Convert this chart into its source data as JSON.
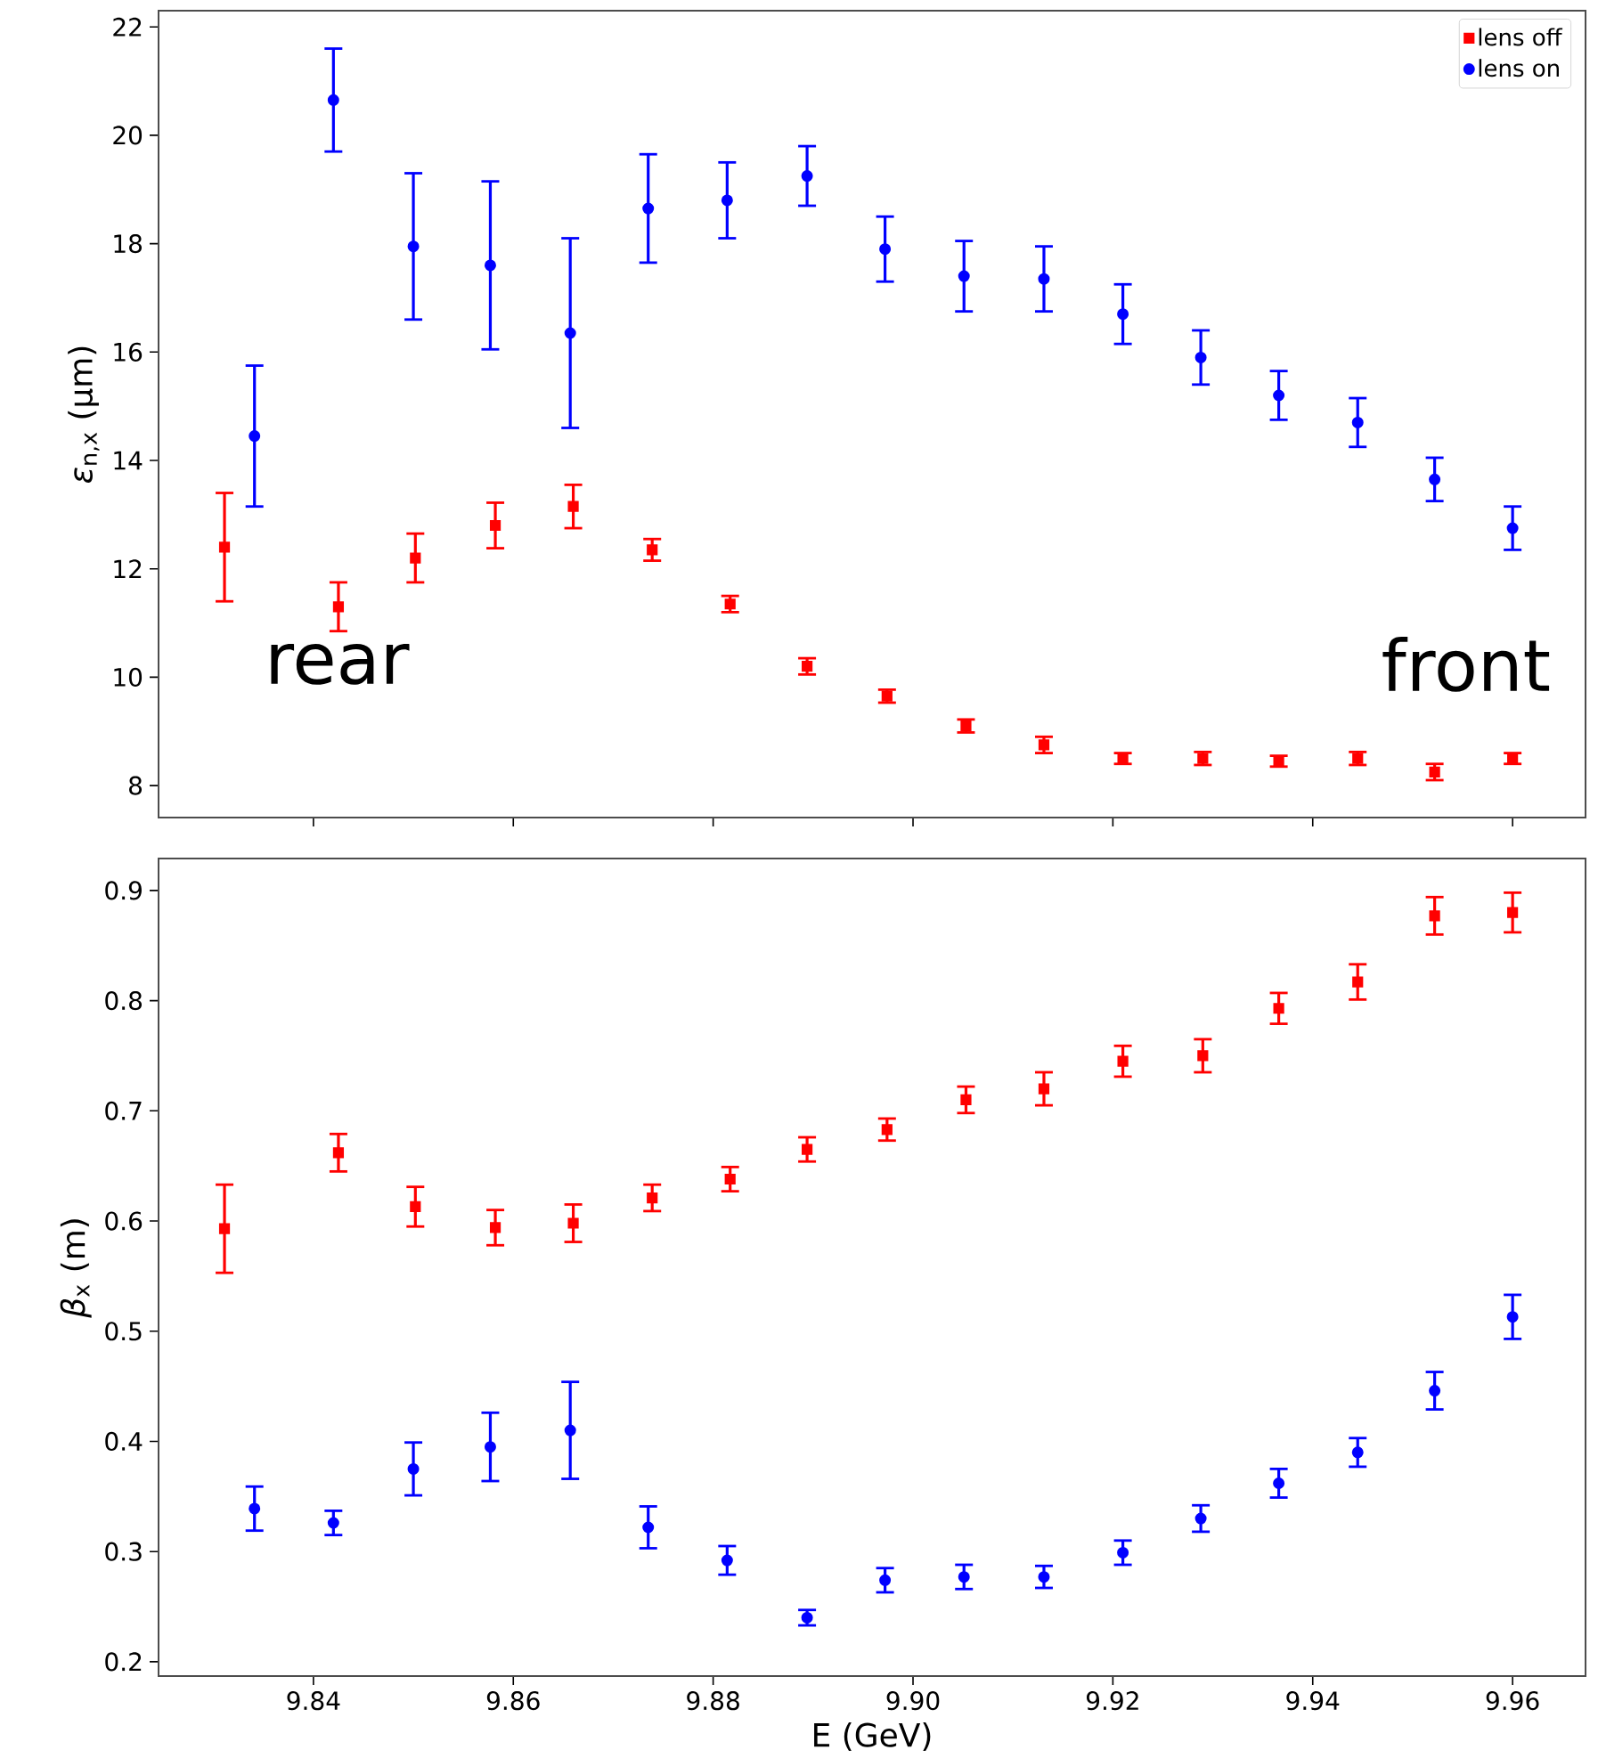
{
  "chart_data": [
    {
      "type": "scatter",
      "ylabel": "*ε*$_{n,x}$ (μm)",
      "annotations": [
        "rear",
        "front"
      ],
      "xlim": [
        9.8245,
        9.9673
      ],
      "xticks": [
        9.84,
        9.86,
        9.88,
        9.9,
        9.92,
        9.94,
        9.96
      ],
      "ylim": [
        7.41,
        22.3
      ],
      "yticks": [
        8,
        10,
        12,
        14,
        16,
        18,
        20,
        22
      ],
      "tick_labels": "y",
      "legend": "top right",
      "series": [
        {
          "name": "lens off",
          "color": "#ff0000",
          "marker": "square",
          "x": [
            9.8311,
            9.8425,
            9.8502,
            9.8582,
            9.866,
            9.8739,
            9.8817,
            9.8894,
            9.8974,
            9.9053,
            9.9131,
            9.921,
            9.929,
            9.9366,
            9.9445,
            9.9522,
            9.96
          ],
          "values": [
            12.4,
            11.3,
            12.2,
            12.8,
            13.15,
            12.35,
            11.35,
            10.2,
            9.65,
            9.1,
            8.75,
            8.5,
            8.5,
            8.45,
            8.5,
            8.25,
            8.5
          ],
          "errors": [
            1.0,
            0.45,
            0.45,
            0.42,
            0.4,
            0.2,
            0.15,
            0.15,
            0.12,
            0.12,
            0.15,
            0.1,
            0.12,
            0.1,
            0.12,
            0.15,
            0.1
          ]
        },
        {
          "name": "lens on",
          "color": "#0000ff",
          "marker": "circle",
          "x": [
            9.8341,
            9.842,
            9.85,
            9.8577,
            9.8657,
            9.8735,
            9.8814,
            9.8894,
            9.8972,
            9.9051,
            9.9131,
            9.921,
            9.9288,
            9.9366,
            9.9445,
            9.9522,
            9.96
          ],
          "values": [
            14.45,
            20.65,
            17.95,
            17.6,
            16.35,
            18.65,
            18.8,
            19.25,
            17.9,
            17.4,
            17.35,
            16.7,
            15.9,
            15.2,
            14.7,
            13.65,
            12.75
          ],
          "errors": [
            1.3,
            0.95,
            1.35,
            1.55,
            1.75,
            1.0,
            0.7,
            0.55,
            0.6,
            0.65,
            0.6,
            0.55,
            0.5,
            0.45,
            0.45,
            0.4,
            0.4
          ]
        }
      ]
    },
    {
      "type": "scatter",
      "xlabel": "E (GeV)",
      "ylabel": "*β*$_{x}$ (m)",
      "xlim": [
        9.8245,
        9.9673
      ],
      "xticks": [
        {
          "value": 9.84,
          "label": "9.84"
        },
        {
          "value": 9.86,
          "label": "9.86"
        },
        {
          "value": 9.88,
          "label": "9.88"
        },
        {
          "value": 9.9,
          "label": "9.90"
        },
        {
          "value": 9.92,
          "label": "9.92"
        },
        {
          "value": 9.94,
          "label": "9.94"
        },
        {
          "value": 9.96,
          "label": "9.96"
        }
      ],
      "ylim": [
        0.187,
        0.929
      ],
      "yticks": [
        0.2,
        0.3,
        0.4,
        0.5,
        0.6,
        0.7,
        0.8,
        0.9
      ],
      "series": [
        {
          "color": "#ff0000",
          "marker": "square",
          "x": [
            9.8311,
            9.8425,
            9.8502,
            9.8582,
            9.866,
            9.8739,
            9.8817,
            9.8894,
            9.8974,
            9.9053,
            9.9131,
            9.921,
            9.929,
            9.9366,
            9.9445,
            9.9522,
            9.96
          ],
          "values": [
            0.593,
            0.662,
            0.613,
            0.594,
            0.598,
            0.621,
            0.638,
            0.665,
            0.683,
            0.71,
            0.72,
            0.745,
            0.75,
            0.793,
            0.817,
            0.877,
            0.88
          ],
          "errors": [
            0.04,
            0.017,
            0.018,
            0.016,
            0.017,
            0.012,
            0.011,
            0.011,
            0.01,
            0.012,
            0.015,
            0.014,
            0.015,
            0.014,
            0.016,
            0.017,
            0.018
          ]
        },
        {
          "color": "#0000ff",
          "marker": "circle",
          "x": [
            9.8341,
            9.842,
            9.85,
            9.8577,
            9.8657,
            9.8735,
            9.8814,
            9.8894,
            9.8972,
            9.9051,
            9.9131,
            9.921,
            9.9288,
            9.9366,
            9.9445,
            9.9522,
            9.96
          ],
          "values": [
            0.339,
            0.326,
            0.375,
            0.395,
            0.41,
            0.322,
            0.292,
            0.24,
            0.274,
            0.277,
            0.277,
            0.299,
            0.33,
            0.362,
            0.39,
            0.446,
            0.513
          ],
          "errors": [
            0.02,
            0.011,
            0.024,
            0.031,
            0.044,
            0.019,
            0.013,
            0.007,
            0.011,
            0.011,
            0.01,
            0.011,
            0.012,
            0.013,
            0.013,
            0.017,
            0.02
          ]
        }
      ]
    }
  ]
}
